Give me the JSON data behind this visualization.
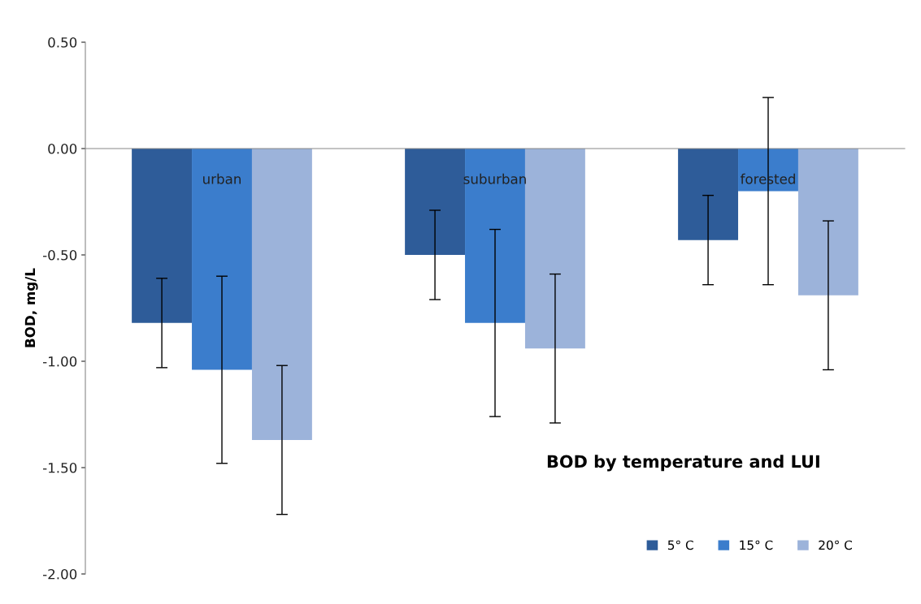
{
  "chart_data": {
    "type": "bar",
    "title": "BOD by temperature and LUI",
    "ylabel": "BOD, mg/L",
    "categories": [
      "urban",
      "suburban",
      "forested"
    ],
    "series": [
      {
        "name": "5° C",
        "color": "#2e5c99",
        "values": [
          -0.82,
          -0.5,
          -0.43
        ],
        "errors": [
          0.21,
          0.21,
          0.21
        ]
      },
      {
        "name": "15° C",
        "color": "#3b7dcc",
        "values": [
          -1.04,
          -0.82,
          -0.2
        ],
        "errors": [
          0.44,
          0.44,
          0.44
        ]
      },
      {
        "name": "20° C",
        "color": "#9cb3da",
        "values": [
          -1.37,
          -0.94,
          -0.69
        ],
        "errors": [
          0.35,
          0.35,
          0.35
        ]
      }
    ],
    "ylim": [
      -2.0,
      0.5
    ],
    "yticks": [
      {
        "value": 0.5,
        "label": "0.50"
      },
      {
        "value": 0.0,
        "label": "0.00"
      },
      {
        "value": -0.5,
        "label": "-0.50"
      },
      {
        "value": -1.0,
        "label": "-1.00"
      },
      {
        "value": -1.5,
        "label": "-1.50"
      },
      {
        "value": -2.0,
        "label": "-2.00"
      }
    ],
    "grid": false,
    "legend": "bottom right"
  }
}
